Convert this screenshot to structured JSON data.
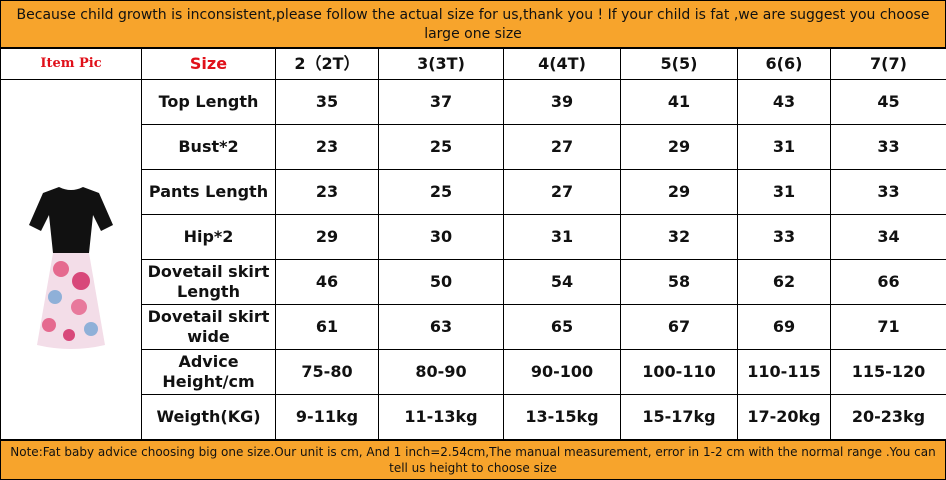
{
  "header": {
    "text": "Because child growth is inconsistent,please follow the actual size for us,thank you ! If your child is fat ,we are suggest you choose large one size"
  },
  "table": {
    "columns": [
      "Item Pic",
      "Size",
      "2（2T）",
      "3(3T)",
      "4(4T)",
      "5(5)",
      "6(6)",
      "7(7)"
    ],
    "rows": [
      [
        "Top Length",
        35,
        37,
        39,
        41,
        43,
        45
      ],
      [
        "Bust*2",
        23,
        25,
        27,
        29,
        31,
        33
      ],
      [
        "Pants Length",
        23,
        25,
        27,
        29,
        31,
        33
      ],
      [
        "Hip*2",
        29,
        30,
        31,
        32,
        33,
        34
      ],
      [
        "Dovetail skirt Length",
        46,
        50,
        54,
        58,
        62,
        66
      ],
      [
        "Dovetail skirt wide",
        61,
        63,
        65,
        67,
        69,
        71
      ],
      [
        "Advice Height/cm",
        "75-80",
        "80-90",
        "90-100",
        "100-110",
        "110-115",
        "115-120"
      ],
      [
        "Weigth(KG)",
        "9-11kg",
        "11-13kg",
        "13-15kg",
        "15-17kg",
        "17-20kg",
        "20-23kg"
      ]
    ]
  },
  "note": {
    "text": "Note:Fat baby advice choosing big one size.Our unit is cm, And 1 inch=2.54cm,The manual measurement, error in 1-2 cm with the normal range .You can tell us height to choose size"
  }
}
